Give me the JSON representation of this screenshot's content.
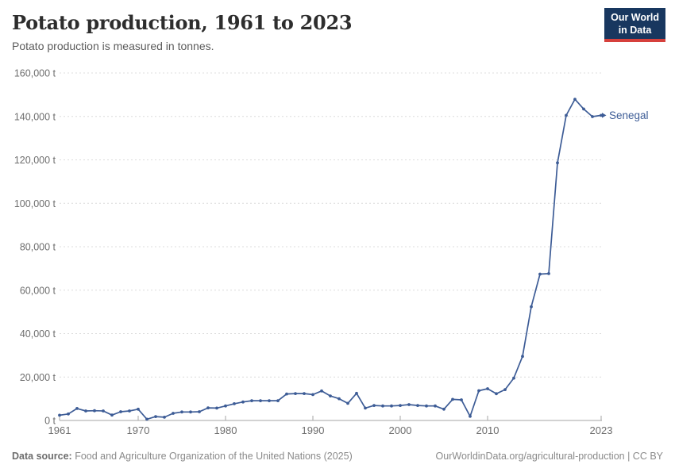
{
  "header": {
    "title": "Potato production, 1961 to 2023",
    "subtitle": "Potato production is measured in tonnes."
  },
  "logo": {
    "line1": "Our World",
    "line2": "in Data",
    "bg_color": "#18375f",
    "accent_color": "#d6403c"
  },
  "chart_data": {
    "type": "line",
    "title": "Potato production, 1961 to 2023",
    "subtitle": "Potato production is measured in tonnes.",
    "unit": "t",
    "xlim": [
      1961,
      2023
    ],
    "ylim": [
      0,
      160000
    ],
    "grid": "horizontal-dashed",
    "legend_position": "end-of-line-label",
    "x_ticks": [
      1961,
      1970,
      1980,
      1990,
      2000,
      2010,
      2023
    ],
    "y_ticks": [
      {
        "value": 0,
        "label": "0 t"
      },
      {
        "value": 20000,
        "label": "20,000 t"
      },
      {
        "value": 40000,
        "label": "40,000 t"
      },
      {
        "value": 60000,
        "label": "60,000 t"
      },
      {
        "value": 80000,
        "label": "80,000 t"
      },
      {
        "value": 100000,
        "label": "100,000 t"
      },
      {
        "value": 120000,
        "label": "120,000 t"
      },
      {
        "value": 140000,
        "label": "140,000 t"
      },
      {
        "value": 160000,
        "label": "160,000 t"
      }
    ],
    "x": [
      1961,
      1962,
      1963,
      1964,
      1965,
      1966,
      1967,
      1968,
      1969,
      1970,
      1971,
      1972,
      1973,
      1974,
      1975,
      1976,
      1977,
      1978,
      1979,
      1980,
      1981,
      1982,
      1983,
      1984,
      1985,
      1986,
      1987,
      1988,
      1989,
      1990,
      1991,
      1992,
      1993,
      1994,
      1995,
      1996,
      1997,
      1998,
      1999,
      2000,
      2001,
      2002,
      2003,
      2004,
      2005,
      2006,
      2007,
      2008,
      2009,
      2010,
      2011,
      2012,
      2013,
      2014,
      2015,
      2016,
      2017,
      2018,
      2019,
      2020,
      2021,
      2022,
      2023
    ],
    "series": [
      {
        "name": "Senegal",
        "color": "#3d5c96",
        "values": [
          2400,
          3000,
          5500,
          4400,
          4500,
          4400,
          2500,
          4000,
          4400,
          5200,
          600,
          1800,
          1500,
          3300,
          3900,
          3900,
          4000,
          5800,
          5700,
          6700,
          7700,
          8500,
          9100,
          9100,
          9100,
          9100,
          12200,
          12400,
          12400,
          11900,
          13600,
          11300,
          10000,
          7900,
          12500,
          5700,
          6900,
          6700,
          6700,
          6900,
          7300,
          6900,
          6700,
          6700,
          5200,
          9700,
          9500,
          1900,
          13700,
          14600,
          12300,
          14200,
          19500,
          29500,
          52400,
          67400,
          67600,
          118600,
          140500,
          147900,
          143400,
          139900,
          140500
        ]
      }
    ]
  },
  "footer": {
    "source_label": "Data source:",
    "source_text": "Food and Agriculture Organization of the United Nations (2025)",
    "credit": "OurWorldinData.org/agricultural-production | CC BY"
  },
  "colors": {
    "line": "#3d5c96",
    "grid": "#dcdcdc",
    "axis": "#a5a5a5",
    "tick_text": "#6e6e6e",
    "title_text": "#2d2d2d",
    "subtitle_text": "#5b5b5b",
    "footer_text": "#8a8a8a"
  }
}
